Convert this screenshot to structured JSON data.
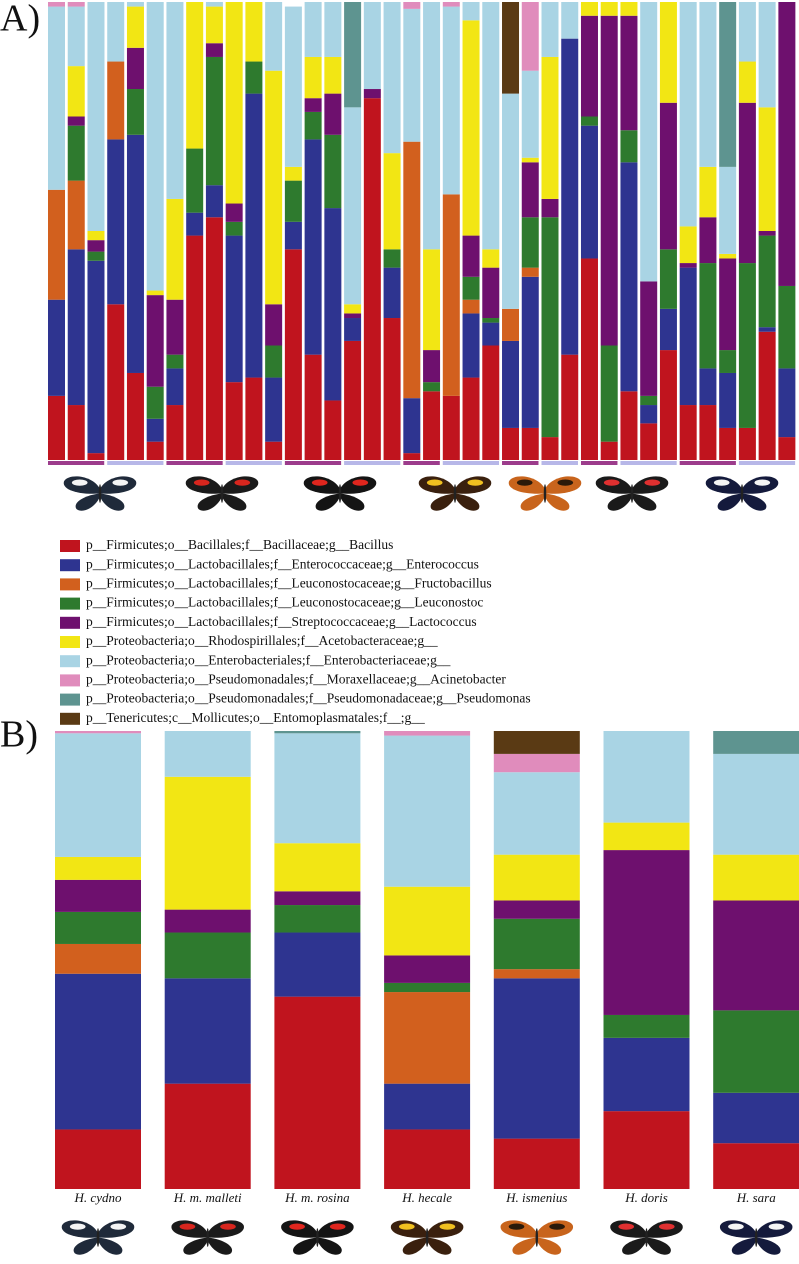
{
  "chart_data": [
    {
      "type": "bar",
      "stacked": true,
      "panel_label": "A)",
      "categories": [
        null,
        null,
        null,
        null,
        null,
        null,
        null,
        null,
        null,
        null,
        null,
        null,
        null,
        null,
        null,
        null,
        null,
        null,
        null,
        null,
        null,
        null,
        null,
        null,
        null,
        null,
        null,
        null,
        null,
        null,
        null,
        null,
        null,
        null,
        null,
        null,
        null,
        null
      ],
      "ylim": [
        0,
        100
      ],
      "series": [
        {
          "name": "p__Firmicutes;o__Bacillales;f__Bacillaceae;g__Bacillus",
          "color": "#c0141e",
          "values": [
            14,
            12,
            1.5,
            34,
            19,
            4,
            12,
            49,
            53,
            17,
            18,
            4,
            46,
            23,
            13,
            26,
            79,
            31,
            1.5,
            15,
            14,
            18,
            25,
            7,
            7,
            5,
            23,
            44,
            4,
            15,
            8,
            24,
            12,
            12,
            7,
            7,
            28,
            5
          ]
        },
        {
          "name": "p__Firmicutes;o__Lactobacillales;f__Enterococcaceae;g__Enterococcus",
          "color": "#2e3490",
          "values": [
            21,
            34,
            42,
            36,
            52,
            5,
            8,
            5,
            7,
            32,
            62,
            14,
            6,
            47,
            42,
            5,
            0,
            11,
            12,
            0,
            0,
            14,
            5,
            19,
            33,
            0,
            69,
            29,
            0,
            50,
            4,
            9,
            30,
            8,
            12,
            0,
            1,
            15
          ]
        },
        {
          "name": "p__Firmicutes;o__Lactobacillales;f__Leuconostocaceae;g__Fructobacillus",
          "color": "#d2601e",
          "values": [
            24,
            15,
            0,
            17,
            0,
            0,
            0,
            0,
            0,
            0,
            0,
            0,
            0,
            0,
            0,
            0,
            0,
            0,
            56,
            0,
            44,
            3,
            0,
            7,
            2,
            0,
            0,
            0,
            0,
            0,
            0,
            0,
            0,
            0,
            0,
            0,
            0,
            0
          ]
        },
        {
          "name": "p__Firmicutes;o__Lactobacillales;f__Leuconostocaceae;g__Leuconostoc",
          "color": "#2e7a2e",
          "values": [
            0,
            12,
            2,
            0,
            10,
            7,
            3,
            14,
            28,
            3,
            7,
            7,
            9,
            6,
            16,
            0,
            0,
            4,
            0,
            2,
            0,
            5,
            1,
            0,
            11,
            48,
            0,
            2,
            21,
            7,
            2,
            13,
            0,
            23,
            5,
            36,
            20,
            18
          ]
        },
        {
          "name": "p__Firmicutes;o__Lactobacillales;f__Streptococcaceae;g__Lactococcus",
          "color": "#6e106e",
          "values": [
            0,
            2,
            2.5,
            0,
            9,
            20,
            12,
            0,
            3,
            4,
            0,
            9,
            0,
            3,
            9,
            1,
            2,
            0,
            0,
            7,
            0,
            9,
            11,
            0,
            12,
            4,
            0,
            22,
            72,
            25,
            25,
            32,
            1,
            10,
            20,
            35,
            1,
            62
          ]
        },
        {
          "name": "p__Proteobacteria;o__Rhodospirillales;f__Acetobacteraceae;g__",
          "color": "#f2e614",
          "values": [
            0,
            11,
            2,
            0,
            9,
            1,
            22,
            32,
            8,
            44,
            13,
            51,
            3,
            9,
            8,
            2,
            0,
            21,
            0,
            22,
            0,
            47,
            4,
            0,
            1,
            31,
            0,
            3,
            3,
            3,
            0,
            22,
            8,
            11,
            1,
            9,
            27,
            0
          ]
        },
        {
          "name": "p__Proteobacteria;o__Enterobacteriales;f__Enterobacteriaceae;g__",
          "color": "#a9d4e4",
          "values": [
            40,
            13,
            50,
            13,
            1,
            63,
            43,
            0,
            1,
            0,
            0,
            15,
            35,
            12,
            12,
            43,
            19,
            33,
            29,
            54,
            41,
            4,
            54,
            47,
            19,
            12,
            8,
            0,
            0,
            0,
            61,
            0,
            49,
            36,
            19,
            13,
            23,
            0
          ]
        },
        {
          "name": "p__Proteobacteria;o__Pseudomonadales;f__Moraxellaceae;g__Acinetobacter",
          "color": "#e08cbc",
          "values": [
            1,
            1,
            0,
            0,
            0,
            0,
            0,
            0,
            0,
            0,
            0,
            0,
            0,
            0,
            0,
            0,
            0,
            0,
            1.5,
            0,
            1,
            0,
            0,
            0,
            15,
            0,
            0,
            0,
            0,
            0,
            0,
            0,
            0,
            0,
            0,
            0,
            0,
            0
          ]
        },
        {
          "name": "p__Proteobacteria;o__Pseudomonadales;f__Pseudomonadaceae;g__Pseudomonas",
          "color": "#5e9490",
          "values": [
            0,
            0,
            0,
            0,
            0,
            0,
            0,
            0,
            0,
            0,
            0,
            0,
            0,
            0,
            0,
            23,
            0,
            0,
            0,
            0,
            0,
            0,
            0,
            0,
            0,
            0,
            0,
            0,
            0,
            0,
            0,
            0,
            0,
            0,
            36,
            0,
            0,
            0
          ]
        },
        {
          "name": "p__Tenericutes;c__Mollicutes;o__Entomoplasmatales;f__;g__",
          "color": "#5a3a14",
          "values": [
            0,
            0,
            0,
            0,
            0,
            0,
            0,
            0,
            0,
            0,
            0,
            0,
            0,
            0,
            0,
            0,
            0,
            0,
            0,
            0,
            0,
            0,
            0,
            20,
            0,
            0,
            0,
            0,
            0,
            0,
            0,
            0,
            0,
            0,
            0,
            0,
            0,
            0
          ]
        }
      ]
    },
    {
      "type": "bar",
      "stacked": true,
      "panel_label": "B)",
      "categories": [
        "H. cydno",
        "H. m. malleti",
        "H. m. rosina",
        "H. hecale",
        "H. ismenius",
        "H. doris",
        "H. sara"
      ],
      "ylim": [
        0,
        100
      ],
      "series": [
        {
          "color": "#c0141e",
          "values": [
            13,
            23,
            42,
            13,
            11,
            17,
            10
          ]
        },
        {
          "color": "#2e3490",
          "values": [
            34,
            23,
            14,
            10,
            35,
            16,
            11
          ]
        },
        {
          "color": "#d2601e",
          "values": [
            6.5,
            0,
            0,
            20,
            2,
            0,
            0
          ]
        },
        {
          "color": "#2e7a2e",
          "values": [
            7,
            10,
            6,
            2,
            11,
            5,
            18
          ]
        },
        {
          "color": "#6e106e",
          "values": [
            7,
            5,
            3,
            6,
            4,
            36,
            24
          ]
        },
        {
          "color": "#f2e614",
          "values": [
            5,
            29,
            10.5,
            15,
            10,
            6,
            10
          ]
        },
        {
          "color": "#a9d4e4",
          "values": [
            27,
            10,
            24,
            33,
            18,
            20,
            22
          ]
        },
        {
          "color": "#e08cbc",
          "values": [
            0.5,
            0,
            0,
            1,
            4,
            0,
            0
          ]
        },
        {
          "color": "#5e9490",
          "values": [
            0,
            0,
            0.5,
            0,
            0,
            0,
            5
          ]
        },
        {
          "color": "#5a3a14",
          "values": [
            0,
            0,
            0,
            0,
            5,
            0,
            0
          ]
        }
      ]
    }
  ]
}
